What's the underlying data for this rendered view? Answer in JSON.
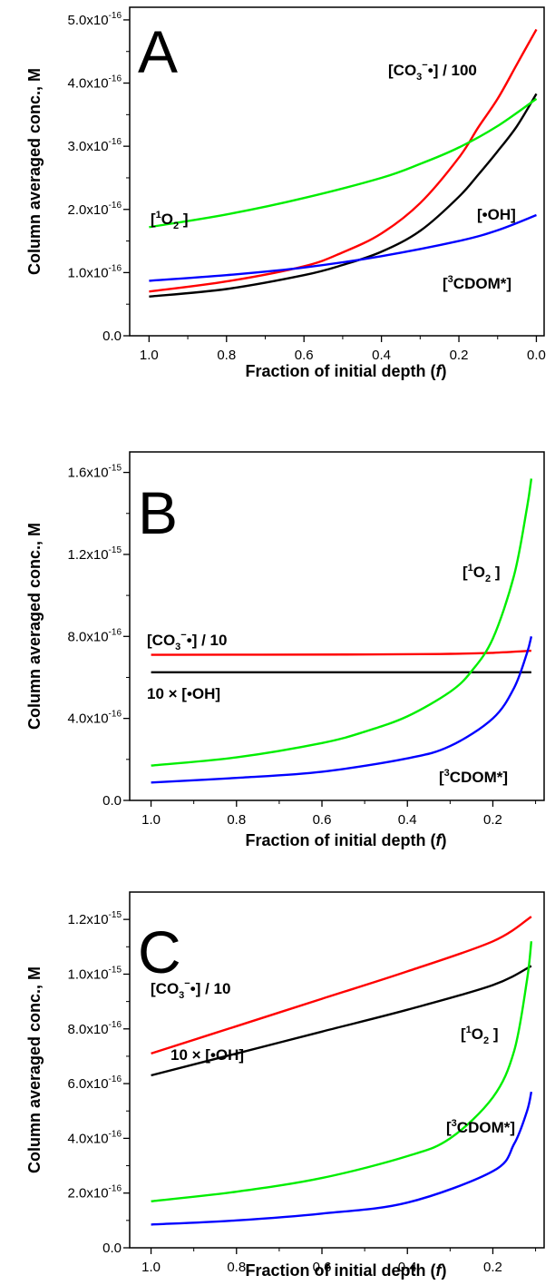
{
  "chart_data": [
    {
      "type": "line",
      "panel_label": "A",
      "xlabel": "Fraction of initial depth (f)",
      "ylabel": "Column averaged conc., M",
      "xlim": [
        1.05,
        -0.02
      ],
      "x_reversed": true,
      "ylim": [
        0,
        5.2
      ],
      "x_ticks": [
        "1.0",
        "0.8",
        "0.6",
        "0.4",
        "0.2",
        "0.0"
      ],
      "y_ticks": [
        "0.0",
        "1.0x10-16",
        "2.0x10-16",
        "3.0x10-16",
        "4.0x10-16",
        "5.0x10-16"
      ],
      "y_unit": "1e-16 M",
      "grid": false,
      "series": [
        {
          "name": "[CO3−•] / 100",
          "color": "#ff0000",
          "x": [
            1.0,
            0.8,
            0.6,
            0.5,
            0.4,
            0.3,
            0.2,
            0.15,
            0.1,
            0.05,
            0.0
          ],
          "values": [
            0.7,
            0.86,
            1.1,
            1.32,
            1.62,
            2.1,
            2.82,
            3.3,
            3.75,
            4.3,
            4.85
          ]
        },
        {
          "name": "[•OH]",
          "color": "#000000",
          "x": [
            1.0,
            0.8,
            0.6,
            0.5,
            0.4,
            0.3,
            0.2,
            0.15,
            0.1,
            0.05,
            0.0
          ],
          "values": [
            0.62,
            0.74,
            0.96,
            1.12,
            1.33,
            1.66,
            2.2,
            2.55,
            2.92,
            3.32,
            3.83
          ]
        },
        {
          "name": "[1O2 ]",
          "color": "#00ee00",
          "x": [
            1.0,
            0.8,
            0.6,
            0.4,
            0.3,
            0.2,
            0.1,
            0.0
          ],
          "values": [
            1.72,
            1.92,
            2.18,
            2.5,
            2.72,
            2.98,
            3.32,
            3.75
          ]
        },
        {
          "name": "[3CDOM*]",
          "color": "#0000ff",
          "x": [
            1.0,
            0.8,
            0.6,
            0.4,
            0.2,
            0.1,
            0.0
          ],
          "values": [
            0.87,
            0.96,
            1.08,
            1.26,
            1.5,
            1.67,
            1.91
          ]
        }
      ],
      "labels": [
        {
          "text": "[CO3−•] / 100",
          "series": 0
        },
        {
          "text": "[•OH]",
          "series": 1
        },
        {
          "text": "[1O2 ]",
          "series": 2
        },
        {
          "text": "[3CDOM*]",
          "series": 3
        }
      ]
    },
    {
      "type": "line",
      "panel_label": "B",
      "xlabel": "Fraction of initial depth (f)",
      "ylabel": "Column averaged conc., M",
      "xlim": [
        1.05,
        0.08
      ],
      "x_reversed": true,
      "ylim": [
        0,
        1.7
      ],
      "x_ticks": [
        "1.0",
        "0.8",
        "0.6",
        "0.4",
        "0.2"
      ],
      "y_ticks": [
        "0.0",
        "4.0x10-16",
        "8.0x10-16",
        "1.2x10-15",
        "1.6x10-15"
      ],
      "y_unit": "1e-15 M",
      "grid": false,
      "series": [
        {
          "name": "[CO3−•] / 10",
          "color": "#ff0000",
          "x": [
            1.0,
            0.5,
            0.3,
            0.2,
            0.11
          ],
          "values": [
            0.71,
            0.712,
            0.715,
            0.72,
            0.73
          ]
        },
        {
          "name": "10 × [•OH]",
          "color": "#000000",
          "x": [
            1.0,
            0.11
          ],
          "values": [
            0.625,
            0.625
          ]
        },
        {
          "name": "[1O2 ]",
          "color": "#00ee00",
          "x": [
            1.0,
            0.8,
            0.6,
            0.5,
            0.4,
            0.3,
            0.25,
            0.2,
            0.15,
            0.12,
            0.11
          ],
          "values": [
            0.17,
            0.21,
            0.28,
            0.335,
            0.41,
            0.53,
            0.63,
            0.79,
            1.1,
            1.43,
            1.57
          ]
        },
        {
          "name": "[3CDOM*]",
          "color": "#0000ff",
          "x": [
            1.0,
            0.8,
            0.6,
            0.4,
            0.3,
            0.2,
            0.15,
            0.12,
            0.11
          ],
          "values": [
            0.087,
            0.11,
            0.14,
            0.205,
            0.265,
            0.4,
            0.55,
            0.72,
            0.8
          ]
        }
      ],
      "labels": [
        {
          "text": "[CO3−•] / 10",
          "series": 0
        },
        {
          "text": "10 × [•OH]",
          "series": 1
        },
        {
          "text": "[1O2 ]",
          "series": 2
        },
        {
          "text": "[3CDOM*]",
          "series": 3
        }
      ]
    },
    {
      "type": "line",
      "panel_label": "C",
      "xlabel": "Fraction of initial depth (f)",
      "ylabel": "Column averaged conc., M",
      "xlim": [
        1.05,
        0.08
      ],
      "x_reversed": true,
      "ylim": [
        0,
        1.3
      ],
      "x_ticks": [
        "1.0",
        "0.8",
        "0.6",
        "0.4",
        "0.2"
      ],
      "y_ticks": [
        "0.0",
        "2.0x10-16",
        "4.0x10-16",
        "6.0x10-16",
        "8.0x10-16",
        "1.0x10-15",
        "1.2x10-15"
      ],
      "y_unit": "1e-15 M",
      "grid": false,
      "series": [
        {
          "name": "[CO3−•] / 10",
          "color": "#ff0000",
          "x": [
            1.0,
            0.8,
            0.6,
            0.4,
            0.2,
            0.11
          ],
          "values": [
            0.71,
            0.81,
            0.91,
            1.01,
            1.12,
            1.21
          ]
        },
        {
          "name": "10 × [•OH]",
          "color": "#000000",
          "x": [
            1.0,
            0.8,
            0.6,
            0.4,
            0.2,
            0.11
          ],
          "values": [
            0.63,
            0.71,
            0.79,
            0.87,
            0.96,
            1.03
          ]
        },
        {
          "name": "[1O2 ]",
          "color": "#00ee00",
          "x": [
            1.0,
            0.8,
            0.6,
            0.4,
            0.3,
            0.2,
            0.15,
            0.12,
            0.11
          ],
          "values": [
            0.17,
            0.205,
            0.255,
            0.335,
            0.4,
            0.55,
            0.72,
            0.98,
            1.12
          ]
        },
        {
          "name": "[3CDOM*]",
          "color": "#0000ff",
          "x": [
            1.0,
            0.8,
            0.6,
            0.4,
            0.2,
            0.15,
            0.12,
            0.11
          ],
          "values": [
            0.085,
            0.1,
            0.125,
            0.165,
            0.28,
            0.38,
            0.5,
            0.57
          ]
        }
      ],
      "labels": [
        {
          "text": "[CO3−•] / 10",
          "series": 0
        },
        {
          "text": "10 × [•OH]",
          "series": 1
        },
        {
          "text": "[1O2 ]",
          "series": 2
        },
        {
          "text": "[3CDOM*]",
          "series": 3
        }
      ]
    }
  ]
}
